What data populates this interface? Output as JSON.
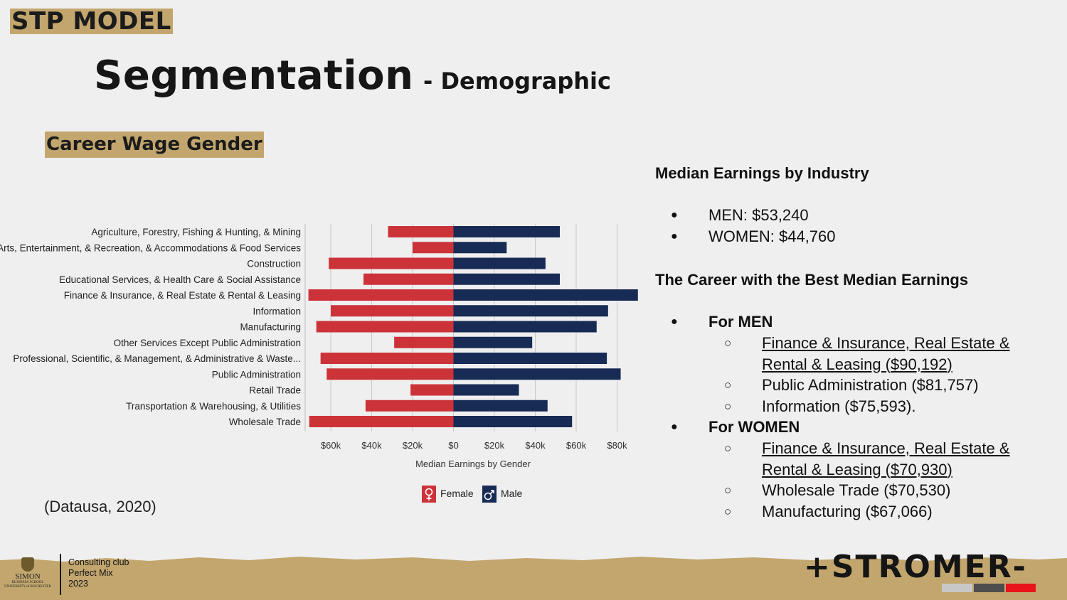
{
  "header": {
    "section_tag": "STP MODEL",
    "title_main": "Segmentation",
    "title_sub": "- Demographic",
    "subsection_tag": "Career Wage Gender"
  },
  "chart_data": {
    "type": "bar",
    "orientation": "horizontal-diverging",
    "categories": [
      "Agriculture, Forestry, Fishing & Hunting, & Mining",
      "Arts, Entertainment, & Recreation, & Accommodations & Food Services",
      "Construction",
      "Educational Services, & Health Care & Social Assistance",
      "Finance & Insurance, & Real Estate & Rental & Leasing",
      "Information",
      "Manufacturing",
      "Other Services Except Public Administration",
      "Professional, Scientific, & Management, & Administrative & Waste...",
      "Public Administration",
      "Retail Trade",
      "Transportation & Warehousing, & Utilities",
      "Wholesale Trade"
    ],
    "series": [
      {
        "name": "Female",
        "color": "#cc3339",
        "values": [
          32000,
          20000,
          61000,
          44000,
          70930,
          60000,
          67066,
          29000,
          65000,
          62000,
          21000,
          43000,
          70530
        ]
      },
      {
        "name": "Male",
        "color": "#172b55",
        "values": [
          52000,
          26000,
          45000,
          52000,
          90192,
          75593,
          70000,
          38500,
          75000,
          81757,
          32000,
          46000,
          58000
        ]
      }
    ],
    "xlabel": "Median Earnings by Gender",
    "xticks": [
      "$60k",
      "$40k",
      "$20k",
      "$0",
      "$20k",
      "$40k",
      "$60k",
      "$80k"
    ],
    "xtick_values": [
      -60000,
      -40000,
      -20000,
      0,
      20000,
      40000,
      60000,
      80000
    ],
    "xlim": [
      -72000,
      92000
    ],
    "grid": true,
    "legend_position": "bottom",
    "legend_icons": [
      "female-symbol-icon",
      "male-symbol-icon"
    ]
  },
  "citation": "(Datausa, 2020)",
  "summary": {
    "heading1": "Median Earnings by Industry",
    "overall": [
      "MEN: $53,240",
      "WOMEN: $44,760"
    ],
    "heading2": "The Career with the Best Median Earnings",
    "men_label": "For MEN",
    "men_items": [
      {
        "text": "Finance & Insurance, Real Estate & Rental & Leasing (",
        "value": "$90,192",
        "tail": ")"
      },
      {
        "text": "Public Administration (",
        "value": "$81,757",
        "tail": ")"
      },
      {
        "text": "Information (",
        "value": "$75,593",
        "tail": ")."
      }
    ],
    "women_label": "For WOMEN",
    "women_items": [
      {
        "text": "Finance & Insurance, Real Estate & Rental & Leasing (",
        "value": "$70,930",
        "tail": ")"
      },
      {
        "text": "Wholesale Trade (",
        "value": "$70,530",
        "tail": ")"
      },
      {
        "text": "Manufacturing (",
        "value": "$67,066",
        "tail": ")"
      }
    ]
  },
  "footer": {
    "logo_name": "SIMON",
    "logo_sub1": "BUSINESS SCHOOL",
    "logo_sub2": "UNIVERSITY of ROCHESTER",
    "club_lines": [
      "Consulting club",
      "Perfect Mix",
      "2023"
    ],
    "brand": "+STROMER-",
    "swatch_colors": [
      "#c8c8c8",
      "#4d4d4d",
      "#e8141a"
    ],
    "ground_color": "#c2a66e"
  }
}
